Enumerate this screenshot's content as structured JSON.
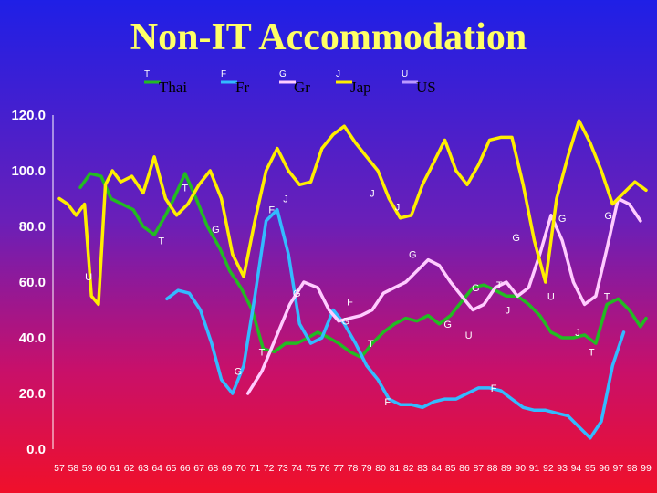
{
  "chart_data": {
    "type": "line",
    "title": "Non-IT Accommodation",
    "ylim": [
      0,
      120
    ],
    "y_ticks": [
      "0.0",
      "20.0",
      "40.0",
      "60.0",
      "80.0",
      "100.0",
      "120.0"
    ],
    "x_ticks": [
      "57",
      "58",
      "59",
      "60",
      "61",
      "62",
      "63",
      "64",
      "65",
      "66",
      "67",
      "68",
      "69",
      "70",
      "71",
      "72",
      "73",
      "74",
      "75",
      "76",
      "77",
      "78",
      "79",
      "80",
      "81",
      "82",
      "83",
      "84",
      "85",
      "86",
      "87",
      "88",
      "89",
      "90",
      "91",
      "92",
      "93",
      "94",
      "95",
      "96",
      "97",
      "98",
      "99"
    ],
    "grid": false,
    "legend_position": "top",
    "series": [
      {
        "name": "Thai",
        "marker": "T",
        "color": "#22bb22",
        "x": [
          58.5,
          59.2,
          60,
          60.7,
          61.5,
          62.3,
          63,
          63.8,
          64.6,
          65.2,
          66,
          66.8,
          67.6,
          68.5,
          69.2,
          70,
          70.8,
          71.6,
          72.4,
          73.2,
          74,
          74.8,
          75.5,
          76.3,
          77,
          77.8,
          78.6,
          79.4,
          80.2,
          81,
          81.8,
          82.6,
          83.4,
          84.2,
          85,
          85.8,
          86.6,
          87.4,
          88.2,
          89,
          89.8,
          90.6,
          91.4,
          92.2,
          93,
          93.8,
          94.6,
          95.4,
          96.2,
          97,
          97.8,
          98.6,
          99
        ],
        "values": [
          94,
          99,
          98,
          90,
          88,
          86,
          80,
          77,
          84,
          90,
          99,
          90,
          80,
          72,
          64,
          58,
          50,
          36,
          35,
          38,
          38,
          40,
          42,
          40,
          38,
          35,
          33,
          38,
          42,
          45,
          47,
          46,
          48,
          45,
          48,
          53,
          58,
          59,
          57,
          55,
          55,
          52,
          48,
          42,
          40,
          40,
          41,
          38,
          52,
          54,
          50,
          44,
          47
        ]
      },
      {
        "name": "Fr",
        "marker": "F",
        "color": "#33bbff",
        "x": [
          64.7,
          65.5,
          66.3,
          67.1,
          67.9,
          68.6,
          69.4,
          70.2,
          71,
          71.8,
          72.6,
          73.4,
          74.2,
          75,
          75.8,
          76.6,
          77.4,
          78.2,
          79,
          79.8,
          80.6,
          81.4,
          82.2,
          83,
          83.8,
          84.6,
          85.4,
          86.2,
          87,
          87.8,
          88.6,
          89.4,
          90.2,
          91,
          91.8,
          92.6,
          93.4,
          94.2,
          95,
          95.8,
          96.6,
          97.4
        ],
        "values": [
          54,
          57,
          56,
          50,
          38,
          25,
          20,
          30,
          55,
          82,
          86,
          70,
          45,
          38,
          40,
          50,
          45,
          38,
          30,
          25,
          18,
          16,
          16,
          15,
          17,
          18,
          18,
          20,
          22,
          22,
          21,
          18,
          15,
          14,
          14,
          13,
          12,
          8,
          4,
          10,
          30,
          42
        ]
      },
      {
        "name": "Gr",
        "marker": "G",
        "color": "#ffccff",
        "x": [
          70.5,
          71.5,
          72.5,
          73.5,
          74.5,
          75.5,
          76.3,
          77,
          77.8,
          78.6,
          79.4,
          80.2,
          81,
          81.8,
          82.6,
          83.4,
          84.2,
          85,
          85.8,
          86.6,
          87.4,
          88.2,
          89,
          89.8,
          90.6,
          91.4,
          92.2,
          93,
          93.8,
          94.6,
          95.4,
          96.2,
          97,
          97.8,
          98.6
        ],
        "values": [
          20,
          28,
          40,
          52,
          60,
          58,
          50,
          46,
          47,
          48,
          50,
          56,
          58,
          60,
          64,
          68,
          66,
          60,
          55,
          50,
          52,
          58,
          60,
          55,
          58,
          70,
          84,
          75,
          60,
          52,
          55,
          72,
          90,
          88,
          82
        ]
      },
      {
        "name": "Jap",
        "marker": "J",
        "color": "#ffee00",
        "x": [
          57,
          57.6,
          58.2,
          58.8,
          59.3,
          59.8,
          60.3,
          60.8,
          61.4,
          62.2,
          63,
          63.8,
          64.6,
          65.4,
          66.2,
          67,
          67.8,
          68.6,
          69.4,
          70.2,
          71,
          71.8,
          72.6,
          73.4,
          74.2,
          75,
          75.8,
          76.6,
          77.4,
          78.2,
          79,
          79.8,
          80.6,
          81.4,
          82.2,
          83,
          83.8,
          84.6,
          85.4,
          86.2,
          87,
          87.8,
          88.6,
          89.4,
          90.2,
          91,
          91.8,
          92.6,
          93.4,
          94.2,
          95,
          95.8,
          96.6,
          97.4,
          98.2,
          99
        ],
        "values": [
          90,
          88,
          84,
          88,
          55,
          52,
          95,
          100,
          96,
          98,
          92,
          105,
          90,
          84,
          88,
          95,
          100,
          90,
          70,
          62,
          82,
          100,
          108,
          100,
          95,
          96,
          108,
          113,
          116,
          110,
          105,
          100,
          90,
          83,
          84,
          95,
          103,
          111,
          100,
          95,
          102,
          111,
          112,
          112,
          95,
          75,
          60,
          90,
          105,
          118,
          110,
          100,
          88,
          92,
          96,
          93
        ]
      },
      {
        "name": "US",
        "marker": "U",
        "color": "#bb99ff",
        "x": [],
        "values": []
      }
    ],
    "point_markers": [
      {
        "text": "T",
        "x": 66,
        "y": 94
      },
      {
        "text": "T",
        "x": 64.3,
        "y": 75
      },
      {
        "text": "T",
        "x": 71.5,
        "y": 35
      },
      {
        "text": "T",
        "x": 79.3,
        "y": 38
      },
      {
        "text": "T",
        "x": 88.5,
        "y": 59
      },
      {
        "text": "T",
        "x": 96.2,
        "y": 55
      },
      {
        "text": "T",
        "x": 95.1,
        "y": 35
      },
      {
        "text": "F",
        "x": 72.2,
        "y": 86
      },
      {
        "text": "F",
        "x": 77.8,
        "y": 53
      },
      {
        "text": "F",
        "x": 80.5,
        "y": 17
      },
      {
        "text": "F",
        "x": 88.1,
        "y": 22
      },
      {
        "text": "G",
        "x": 68.2,
        "y": 79
      },
      {
        "text": "G",
        "x": 74,
        "y": 56
      },
      {
        "text": "G",
        "x": 82.3,
        "y": 70
      },
      {
        "text": "G",
        "x": 93,
        "y": 83
      },
      {
        "text": "G",
        "x": 96.3,
        "y": 84
      },
      {
        "text": "G",
        "x": 89.7,
        "y": 76
      },
      {
        "text": "G",
        "x": 69.8,
        "y": 28
      },
      {
        "text": "G",
        "x": 77.5,
        "y": 46
      },
      {
        "text": "G",
        "x": 86.8,
        "y": 58
      },
      {
        "text": "G",
        "x": 84.8,
        "y": 45
      },
      {
        "text": "J",
        "x": 73.2,
        "y": 90
      },
      {
        "text": "J",
        "x": 79.4,
        "y": 92
      },
      {
        "text": "J",
        "x": 81.2,
        "y": 87
      },
      {
        "text": "J",
        "x": 89.1,
        "y": 50
      },
      {
        "text": "J",
        "x": 94.1,
        "y": 42
      },
      {
        "text": "U",
        "x": 59.1,
        "y": 62
      },
      {
        "text": "U",
        "x": 86.3,
        "y": 41
      },
      {
        "text": "U",
        "x": 92.2,
        "y": 55
      }
    ]
  }
}
